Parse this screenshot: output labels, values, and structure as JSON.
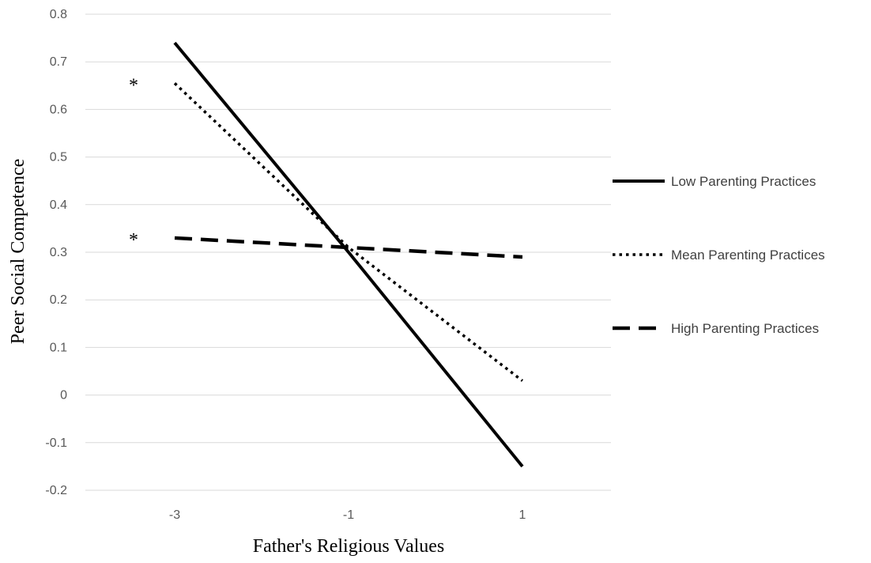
{
  "chart_data": {
    "type": "line",
    "title": "",
    "xlabel": "Father's Religious Values",
    "ylabel": "Peer Social Competence",
    "categories": [
      "-3",
      "-1",
      "1"
    ],
    "x": [
      -3,
      -1,
      1
    ],
    "ylim": [
      -0.2,
      0.8
    ],
    "yticks": [
      "0.8",
      "0.7",
      "0.6",
      "0.5",
      "0.4",
      "0.3",
      "0.2",
      "0.1",
      "0",
      "-0.1",
      "-0.2"
    ],
    "grid": true,
    "legend_position": "right",
    "series": [
      {
        "name": "Low Parenting Practices",
        "style": "solid",
        "color": "#000000",
        "values": [
          0.74,
          0.3,
          -0.15
        ]
      },
      {
        "name": "Mean Parenting Practices",
        "style": "dotted",
        "color": "#000000",
        "values": [
          0.655,
          0.31,
          0.03
        ]
      },
      {
        "name": "High Parenting Practices",
        "style": "dashed",
        "color": "#000000",
        "values": [
          0.33,
          0.31,
          0.29
        ]
      }
    ],
    "annotations": [
      {
        "text": "*",
        "x": -3,
        "y": 0.655
      },
      {
        "text": "*",
        "x": -3,
        "y": 0.33
      }
    ]
  }
}
